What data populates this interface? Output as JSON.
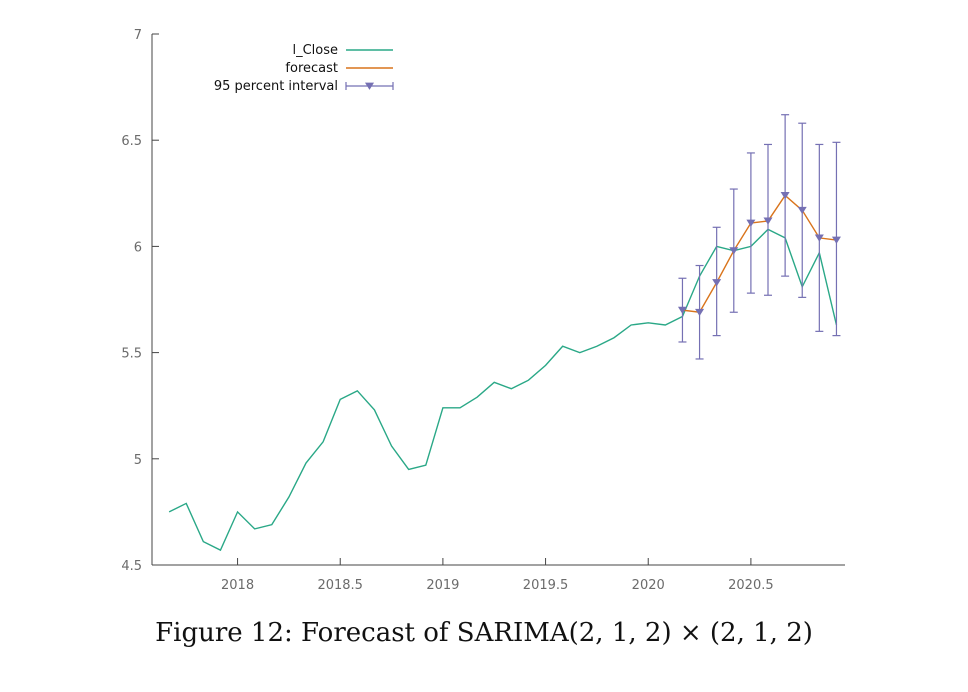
{
  "caption": "Figure 12: Forecast of SARIMA(2, 1, 2) × (2, 1, 2)",
  "chart_data": {
    "type": "line",
    "title": "",
    "xlabel": "",
    "ylabel": "",
    "xlim": [
      2017.5833,
      2020.9583
    ],
    "ylim": [
      4.5,
      7
    ],
    "x_ticks": [
      2018,
      2018.5,
      2019,
      2019.5,
      2020,
      2020.5
    ],
    "x_tick_labels": [
      "2018",
      "2018.5",
      "2019",
      "2019.5",
      "2020",
      "2020.5"
    ],
    "y_ticks": [
      4.5,
      5,
      5.5,
      6,
      6.5,
      7
    ],
    "y_tick_labels": [
      "4.5",
      "5",
      "5.5",
      "6",
      "6.5",
      "7"
    ],
    "legend_position": "top-left",
    "colors": {
      "actual": "#2aa887",
      "forecast": "#d9741c",
      "interval": "#7570b3"
    },
    "legend": {
      "actual": "l_Close",
      "forecast": "forecast",
      "interval": "95 percent interval"
    },
    "actual": {
      "x": [
        2017.6667,
        2017.75,
        2017.8333,
        2017.9167,
        2018.0,
        2018.0833,
        2018.1667,
        2018.25,
        2018.3333,
        2018.4167,
        2018.5,
        2018.5833,
        2018.6667,
        2018.75,
        2018.8333,
        2018.9167,
        2019.0,
        2019.0833,
        2019.1667,
        2019.25,
        2019.3333,
        2019.4167,
        2019.5,
        2019.5833,
        2019.6667,
        2019.75,
        2019.8333,
        2019.9167,
        2020.0,
        2020.0833,
        2020.1667,
        2020.25,
        2020.3333,
        2020.4167,
        2020.5,
        2020.5833,
        2020.6667,
        2020.75,
        2020.8333,
        2020.9167
      ],
      "y": [
        4.75,
        4.79,
        4.61,
        4.57,
        4.75,
        4.67,
        4.69,
        4.82,
        4.98,
        5.08,
        5.28,
        5.32,
        5.23,
        5.06,
        4.95,
        4.97,
        5.24,
        5.24,
        5.29,
        5.36,
        5.33,
        5.37,
        5.44,
        5.53,
        5.5,
        5.53,
        5.57,
        5.63,
        5.64,
        5.63,
        5.67,
        5.86,
        6.0,
        5.98,
        6.0,
        6.08,
        6.04,
        5.81,
        5.97,
        5.63
      ]
    },
    "forecast": {
      "x": [
        2020.1667,
        2020.25,
        2020.3333,
        2020.4167,
        2020.5,
        2020.5833,
        2020.6667,
        2020.75,
        2020.8333,
        2020.9167
      ],
      "y": [
        5.7,
        5.69,
        5.83,
        5.98,
        6.11,
        6.12,
        6.24,
        6.17,
        6.04,
        6.03
      ],
      "lower": [
        5.55,
        5.47,
        5.58,
        5.69,
        5.78,
        5.77,
        5.86,
        5.76,
        5.6,
        5.58
      ],
      "upper": [
        5.85,
        5.91,
        6.09,
        6.27,
        6.44,
        6.48,
        6.62,
        6.58,
        6.48,
        6.49
      ]
    }
  }
}
